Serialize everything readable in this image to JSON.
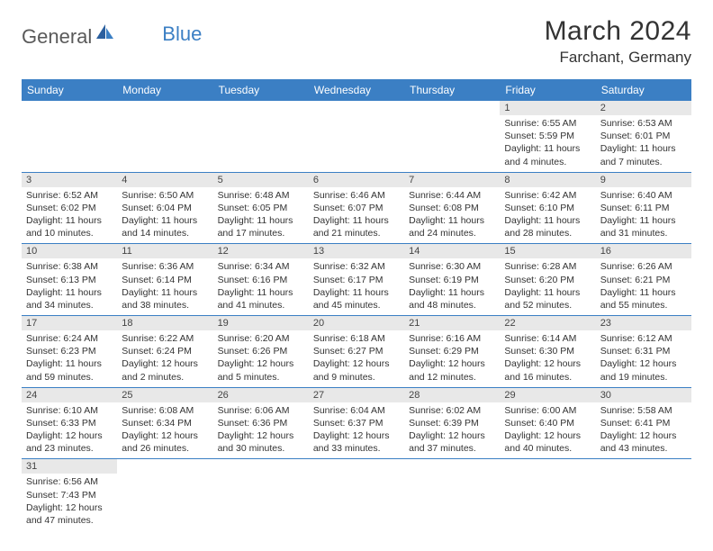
{
  "logo": {
    "text1": "General",
    "text2": "Blue"
  },
  "title": "March 2024",
  "location": "Farchant, Germany",
  "colors": {
    "header_bg": "#3b7fc4",
    "header_text": "#ffffff",
    "daynum_bg": "#e8e8e8",
    "row_border": "#3b7fc4",
    "body_text": "#333333"
  },
  "day_headers": [
    "Sunday",
    "Monday",
    "Tuesday",
    "Wednesday",
    "Thursday",
    "Friday",
    "Saturday"
  ],
  "weeks": [
    [
      {
        "n": "",
        "sr": "",
        "ss": "",
        "dl": ""
      },
      {
        "n": "",
        "sr": "",
        "ss": "",
        "dl": ""
      },
      {
        "n": "",
        "sr": "",
        "ss": "",
        "dl": ""
      },
      {
        "n": "",
        "sr": "",
        "ss": "",
        "dl": ""
      },
      {
        "n": "",
        "sr": "",
        "ss": "",
        "dl": ""
      },
      {
        "n": "1",
        "sr": "Sunrise: 6:55 AM",
        "ss": "Sunset: 5:59 PM",
        "dl": "Daylight: 11 hours and 4 minutes."
      },
      {
        "n": "2",
        "sr": "Sunrise: 6:53 AM",
        "ss": "Sunset: 6:01 PM",
        "dl": "Daylight: 11 hours and 7 minutes."
      }
    ],
    [
      {
        "n": "3",
        "sr": "Sunrise: 6:52 AM",
        "ss": "Sunset: 6:02 PM",
        "dl": "Daylight: 11 hours and 10 minutes."
      },
      {
        "n": "4",
        "sr": "Sunrise: 6:50 AM",
        "ss": "Sunset: 6:04 PM",
        "dl": "Daylight: 11 hours and 14 minutes."
      },
      {
        "n": "5",
        "sr": "Sunrise: 6:48 AM",
        "ss": "Sunset: 6:05 PM",
        "dl": "Daylight: 11 hours and 17 minutes."
      },
      {
        "n": "6",
        "sr": "Sunrise: 6:46 AM",
        "ss": "Sunset: 6:07 PM",
        "dl": "Daylight: 11 hours and 21 minutes."
      },
      {
        "n": "7",
        "sr": "Sunrise: 6:44 AM",
        "ss": "Sunset: 6:08 PM",
        "dl": "Daylight: 11 hours and 24 minutes."
      },
      {
        "n": "8",
        "sr": "Sunrise: 6:42 AM",
        "ss": "Sunset: 6:10 PM",
        "dl": "Daylight: 11 hours and 28 minutes."
      },
      {
        "n": "9",
        "sr": "Sunrise: 6:40 AM",
        "ss": "Sunset: 6:11 PM",
        "dl": "Daylight: 11 hours and 31 minutes."
      }
    ],
    [
      {
        "n": "10",
        "sr": "Sunrise: 6:38 AM",
        "ss": "Sunset: 6:13 PM",
        "dl": "Daylight: 11 hours and 34 minutes."
      },
      {
        "n": "11",
        "sr": "Sunrise: 6:36 AM",
        "ss": "Sunset: 6:14 PM",
        "dl": "Daylight: 11 hours and 38 minutes."
      },
      {
        "n": "12",
        "sr": "Sunrise: 6:34 AM",
        "ss": "Sunset: 6:16 PM",
        "dl": "Daylight: 11 hours and 41 minutes."
      },
      {
        "n": "13",
        "sr": "Sunrise: 6:32 AM",
        "ss": "Sunset: 6:17 PM",
        "dl": "Daylight: 11 hours and 45 minutes."
      },
      {
        "n": "14",
        "sr": "Sunrise: 6:30 AM",
        "ss": "Sunset: 6:19 PM",
        "dl": "Daylight: 11 hours and 48 minutes."
      },
      {
        "n": "15",
        "sr": "Sunrise: 6:28 AM",
        "ss": "Sunset: 6:20 PM",
        "dl": "Daylight: 11 hours and 52 minutes."
      },
      {
        "n": "16",
        "sr": "Sunrise: 6:26 AM",
        "ss": "Sunset: 6:21 PM",
        "dl": "Daylight: 11 hours and 55 minutes."
      }
    ],
    [
      {
        "n": "17",
        "sr": "Sunrise: 6:24 AM",
        "ss": "Sunset: 6:23 PM",
        "dl": "Daylight: 11 hours and 59 minutes."
      },
      {
        "n": "18",
        "sr": "Sunrise: 6:22 AM",
        "ss": "Sunset: 6:24 PM",
        "dl": "Daylight: 12 hours and 2 minutes."
      },
      {
        "n": "19",
        "sr": "Sunrise: 6:20 AM",
        "ss": "Sunset: 6:26 PM",
        "dl": "Daylight: 12 hours and 5 minutes."
      },
      {
        "n": "20",
        "sr": "Sunrise: 6:18 AM",
        "ss": "Sunset: 6:27 PM",
        "dl": "Daylight: 12 hours and 9 minutes."
      },
      {
        "n": "21",
        "sr": "Sunrise: 6:16 AM",
        "ss": "Sunset: 6:29 PM",
        "dl": "Daylight: 12 hours and 12 minutes."
      },
      {
        "n": "22",
        "sr": "Sunrise: 6:14 AM",
        "ss": "Sunset: 6:30 PM",
        "dl": "Daylight: 12 hours and 16 minutes."
      },
      {
        "n": "23",
        "sr": "Sunrise: 6:12 AM",
        "ss": "Sunset: 6:31 PM",
        "dl": "Daylight: 12 hours and 19 minutes."
      }
    ],
    [
      {
        "n": "24",
        "sr": "Sunrise: 6:10 AM",
        "ss": "Sunset: 6:33 PM",
        "dl": "Daylight: 12 hours and 23 minutes."
      },
      {
        "n": "25",
        "sr": "Sunrise: 6:08 AM",
        "ss": "Sunset: 6:34 PM",
        "dl": "Daylight: 12 hours and 26 minutes."
      },
      {
        "n": "26",
        "sr": "Sunrise: 6:06 AM",
        "ss": "Sunset: 6:36 PM",
        "dl": "Daylight: 12 hours and 30 minutes."
      },
      {
        "n": "27",
        "sr": "Sunrise: 6:04 AM",
        "ss": "Sunset: 6:37 PM",
        "dl": "Daylight: 12 hours and 33 minutes."
      },
      {
        "n": "28",
        "sr": "Sunrise: 6:02 AM",
        "ss": "Sunset: 6:39 PM",
        "dl": "Daylight: 12 hours and 37 minutes."
      },
      {
        "n": "29",
        "sr": "Sunrise: 6:00 AM",
        "ss": "Sunset: 6:40 PM",
        "dl": "Daylight: 12 hours and 40 minutes."
      },
      {
        "n": "30",
        "sr": "Sunrise: 5:58 AM",
        "ss": "Sunset: 6:41 PM",
        "dl": "Daylight: 12 hours and 43 minutes."
      }
    ],
    [
      {
        "n": "31",
        "sr": "Sunrise: 6:56 AM",
        "ss": "Sunset: 7:43 PM",
        "dl": "Daylight: 12 hours and 47 minutes."
      },
      {
        "n": "",
        "sr": "",
        "ss": "",
        "dl": ""
      },
      {
        "n": "",
        "sr": "",
        "ss": "",
        "dl": ""
      },
      {
        "n": "",
        "sr": "",
        "ss": "",
        "dl": ""
      },
      {
        "n": "",
        "sr": "",
        "ss": "",
        "dl": ""
      },
      {
        "n": "",
        "sr": "",
        "ss": "",
        "dl": ""
      },
      {
        "n": "",
        "sr": "",
        "ss": "",
        "dl": ""
      }
    ]
  ]
}
